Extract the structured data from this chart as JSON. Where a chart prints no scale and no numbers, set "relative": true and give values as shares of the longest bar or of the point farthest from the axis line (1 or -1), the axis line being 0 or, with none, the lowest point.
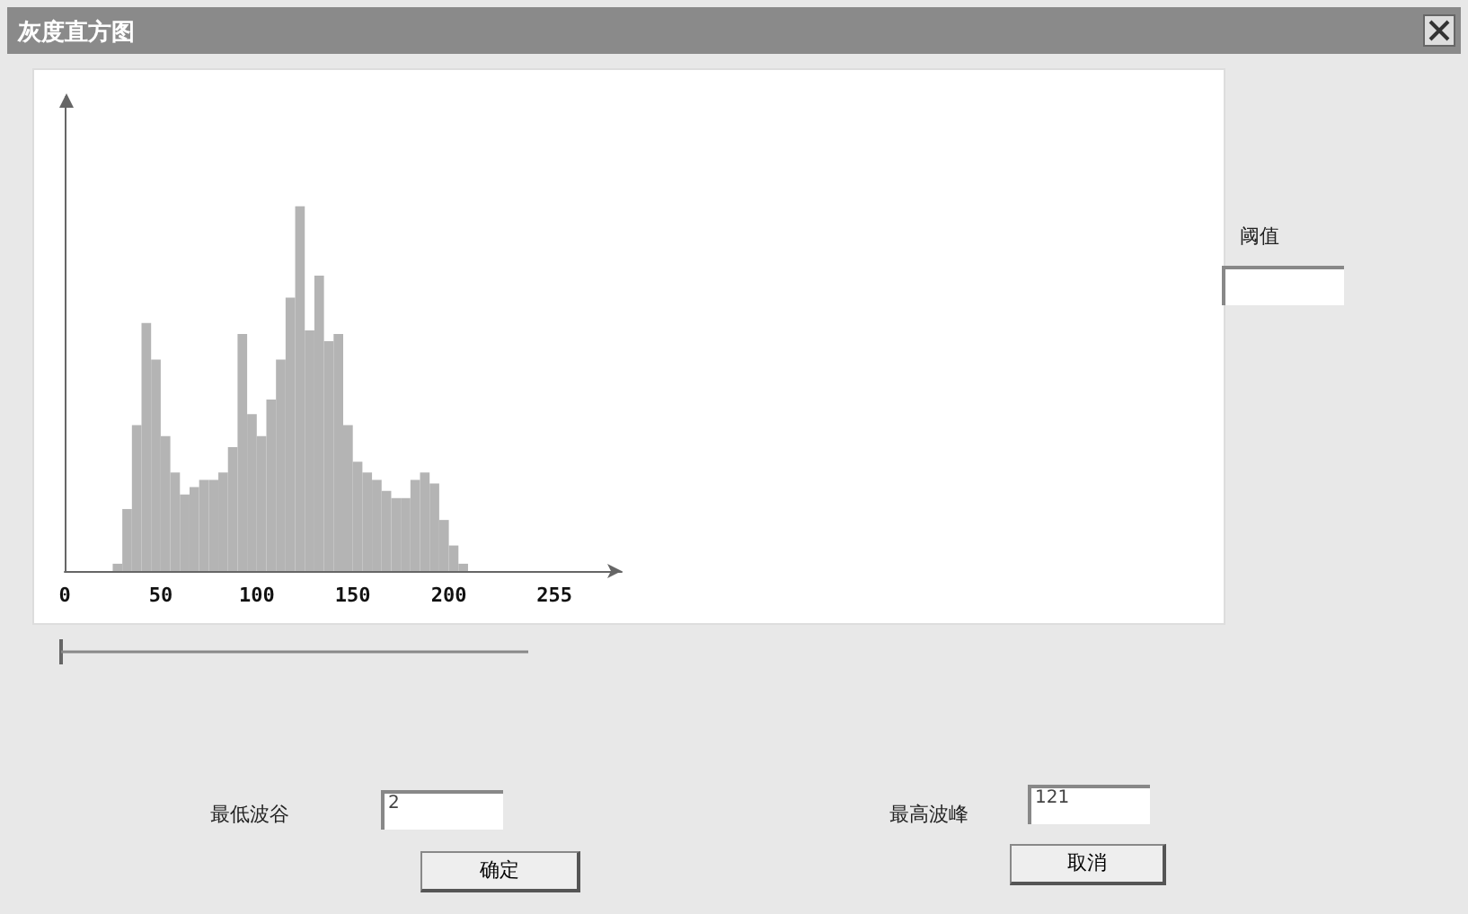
{
  "chart_data": {
    "type": "bar",
    "title": "灰度直方图",
    "relative": true,
    "color": "#b4b4b4",
    "x": [
      2.5,
      7.5,
      12.5,
      17.5,
      22.5,
      27.5,
      32.5,
      37.5,
      42.5,
      47.5,
      52.5,
      57.5,
      62.5,
      67.5,
      72.5,
      77.5,
      82.5,
      87.5,
      92.5,
      97.5,
      102.5,
      107.5,
      112.5,
      117.5,
      122.5,
      127.5,
      132.5,
      137.5,
      142.5,
      147.5,
      152.5,
      157.5,
      162.5,
      167.5,
      172.5,
      177.5,
      182.5,
      187.5,
      192.5,
      197.5,
      202.5,
      207.5,
      212.5,
      217.5,
      222.5,
      227.5,
      232.5,
      237.5,
      242.5,
      247.5,
      252.5
    ],
    "values": [
      0,
      0,
      0,
      0,
      0,
      0.02,
      0.17,
      0.4,
      0.68,
      0.58,
      0.37,
      0.27,
      0.21,
      0.23,
      0.25,
      0.25,
      0.27,
      0.34,
      0.65,
      0.43,
      0.37,
      0.47,
      0.58,
      0.75,
      1.0,
      0.66,
      0.81,
      0.63,
      0.65,
      0.4,
      0.3,
      0.27,
      0.25,
      0.22,
      0.2,
      0.2,
      0.25,
      0.27,
      0.24,
      0.14,
      0.07,
      0.02,
      0,
      0,
      0,
      0,
      0,
      0,
      0,
      0,
      0
    ],
    "xlim": [
      0,
      290
    ],
    "xticks": [
      0,
      50,
      100,
      150,
      200,
      255
    ],
    "grid": false,
    "annotations": [
      "阈值",
      "最低波谷",
      "2",
      "最高波峰",
      "121",
      "确定",
      "取消"
    ]
  }
}
